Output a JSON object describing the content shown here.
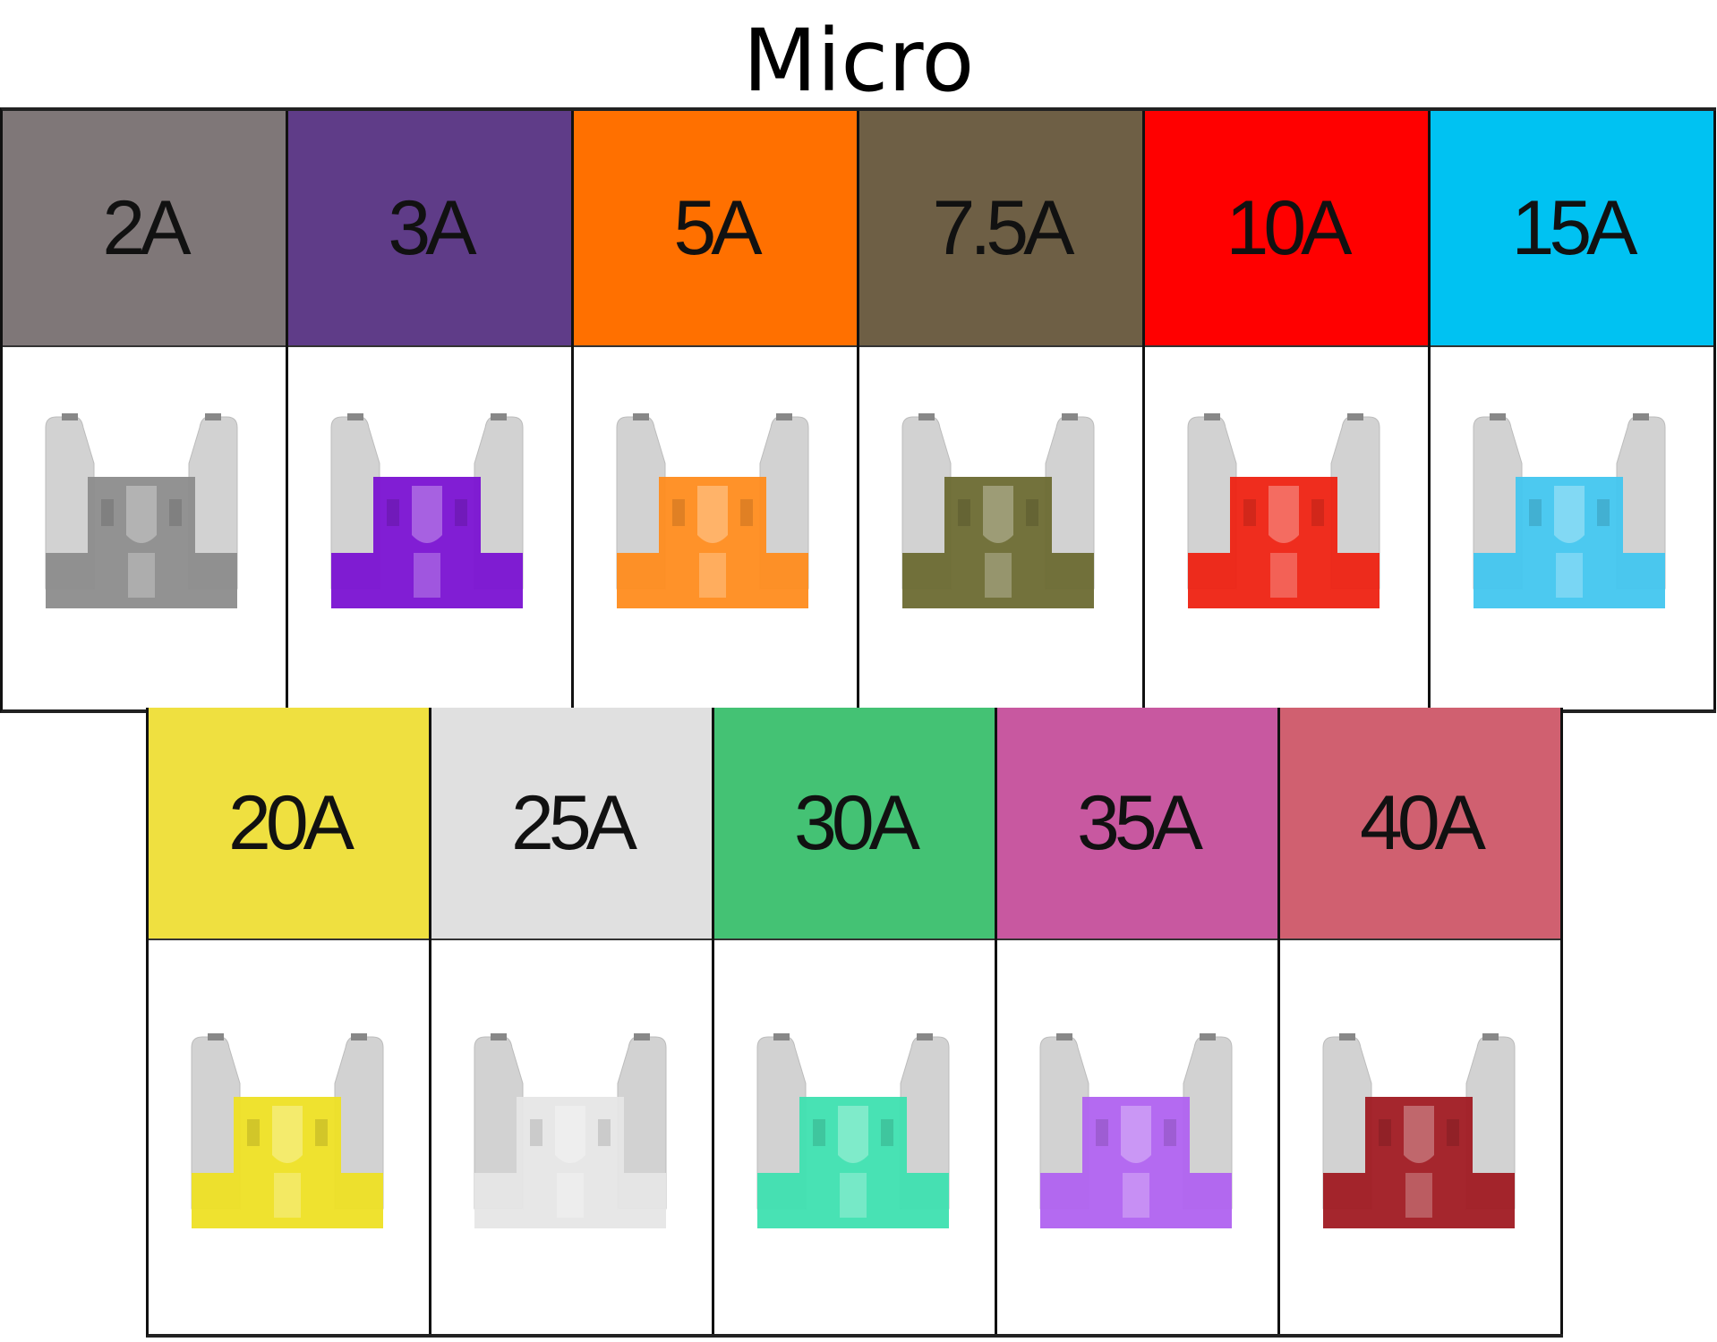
{
  "title": "Micro",
  "rows": [
    [
      {
        "label": "2A",
        "header_color": "#7f7778",
        "fuse_color": "#8c8c8c"
      },
      {
        "label": "3A",
        "header_color": "#5f3c88",
        "fuse_color": "#7a12d2"
      },
      {
        "label": "5A",
        "header_color": "#ff7000",
        "fuse_color": "#ff8c1e"
      },
      {
        "label": "7.5A",
        "header_color": "#6e5f45",
        "fuse_color": "#6c6a32"
      },
      {
        "label": "10A",
        "header_color": "#ff0000",
        "fuse_color": "#ee2212"
      },
      {
        "label": "15A",
        "header_color": "#00c2f2",
        "fuse_color": "#42c6ef"
      }
    ],
    [
      {
        "label": "20A",
        "header_color": "#efe040",
        "fuse_color": "#eee024"
      },
      {
        "label": "25A",
        "header_color": "#e0e0e0",
        "fuse_color": "#e6e6e6"
      },
      {
        "label": "30A",
        "header_color": "#44c274",
        "fuse_color": "#3ee0b0"
      },
      {
        "label": "35A",
        "header_color": "#c858a0",
        "fuse_color": "#b062f0"
      },
      {
        "label": "40A",
        "header_color": "#d06070",
        "fuse_color": "#a01a22"
      }
    ]
  ]
}
